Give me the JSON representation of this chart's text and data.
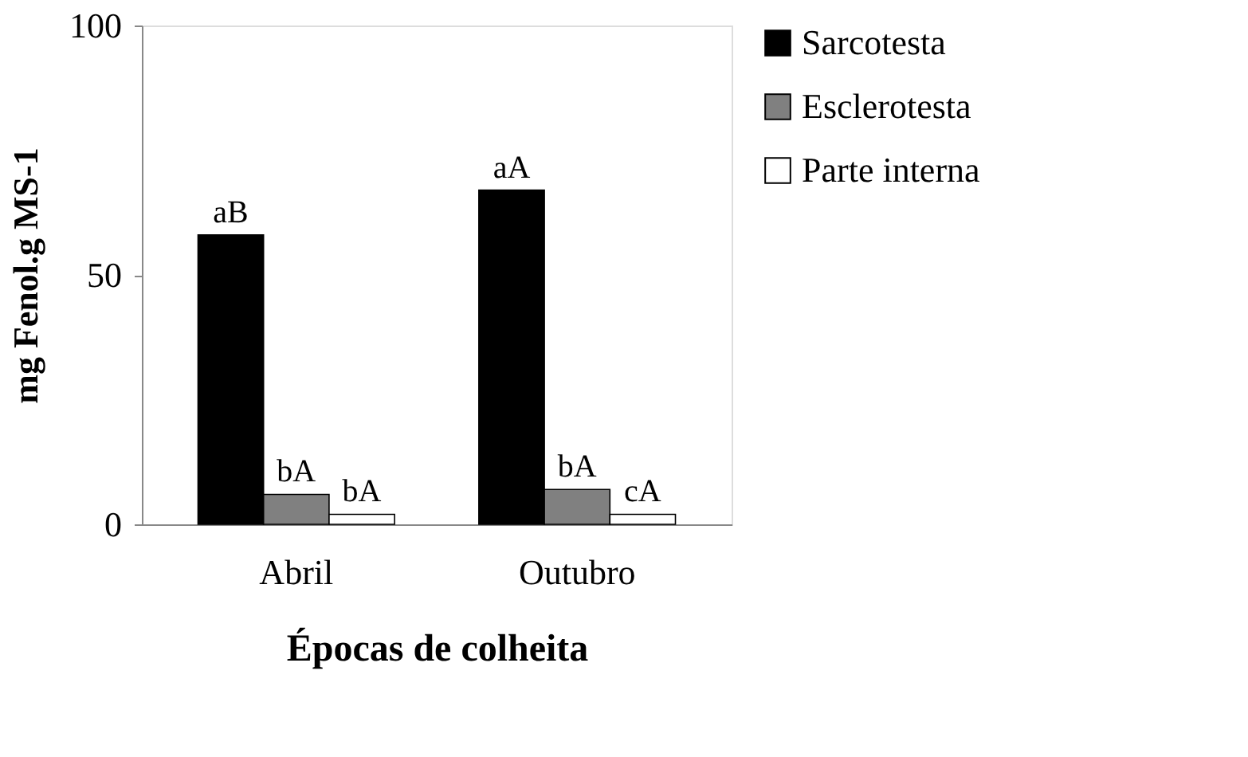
{
  "chart_data": {
    "type": "bar",
    "xlabel": "Épocas de colheita",
    "ylabel": "mg Fenol.g MS-1",
    "categories": [
      "Abril",
      "Outubro"
    ],
    "series": [
      {
        "name": "Sarcotesta",
        "color": "#000000",
        "values": [
          58,
          67
        ],
        "value_labels": [
          "aB",
          "aA"
        ]
      },
      {
        "name": "Esclerotesta",
        "color": "#808080",
        "values": [
          6,
          7
        ],
        "value_labels": [
          "bA",
          "bA"
        ]
      },
      {
        "name": "Parte  interna",
        "color": "#ffffff",
        "values": [
          2,
          2
        ],
        "value_labels": [
          "bA",
          "cA"
        ]
      }
    ],
    "ylim": [
      0,
      100
    ],
    "yticks": [
      0,
      50,
      100
    ],
    "grid": false,
    "legend": "right"
  }
}
